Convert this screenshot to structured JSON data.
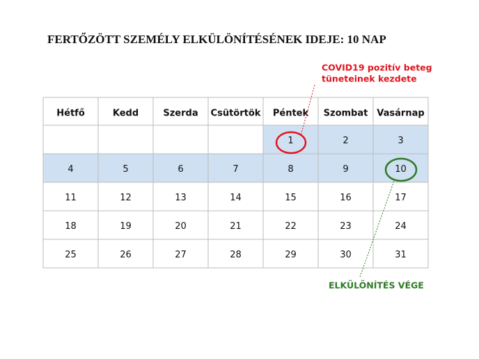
{
  "title": "FERTŐZÖTT SZEMÉLY ELKÜLÖNÍTÉSÉNEK IDEJE: 10 NAP",
  "annotations": {
    "start": [
      "COVID19 pozitív beteg",
      "tüneteinek kezdete"
    ],
    "end": "ELKÜLÖNÍTÉS VÉGE"
  },
  "table": {
    "header": [
      "Hétfő",
      "Kedd",
      "Szerda",
      "Csütörtök",
      "Péntek",
      "Szombat",
      "Vasárnap"
    ],
    "rows": [
      [
        null,
        null,
        null,
        null,
        1,
        2,
        3
      ],
      [
        4,
        5,
        6,
        7,
        8,
        9,
        10
      ],
      [
        11,
        12,
        13,
        14,
        15,
        16,
        17
      ],
      [
        18,
        19,
        20,
        21,
        22,
        23,
        24
      ],
      [
        25,
        26,
        27,
        28,
        29,
        30,
        31
      ]
    ]
  }
}
